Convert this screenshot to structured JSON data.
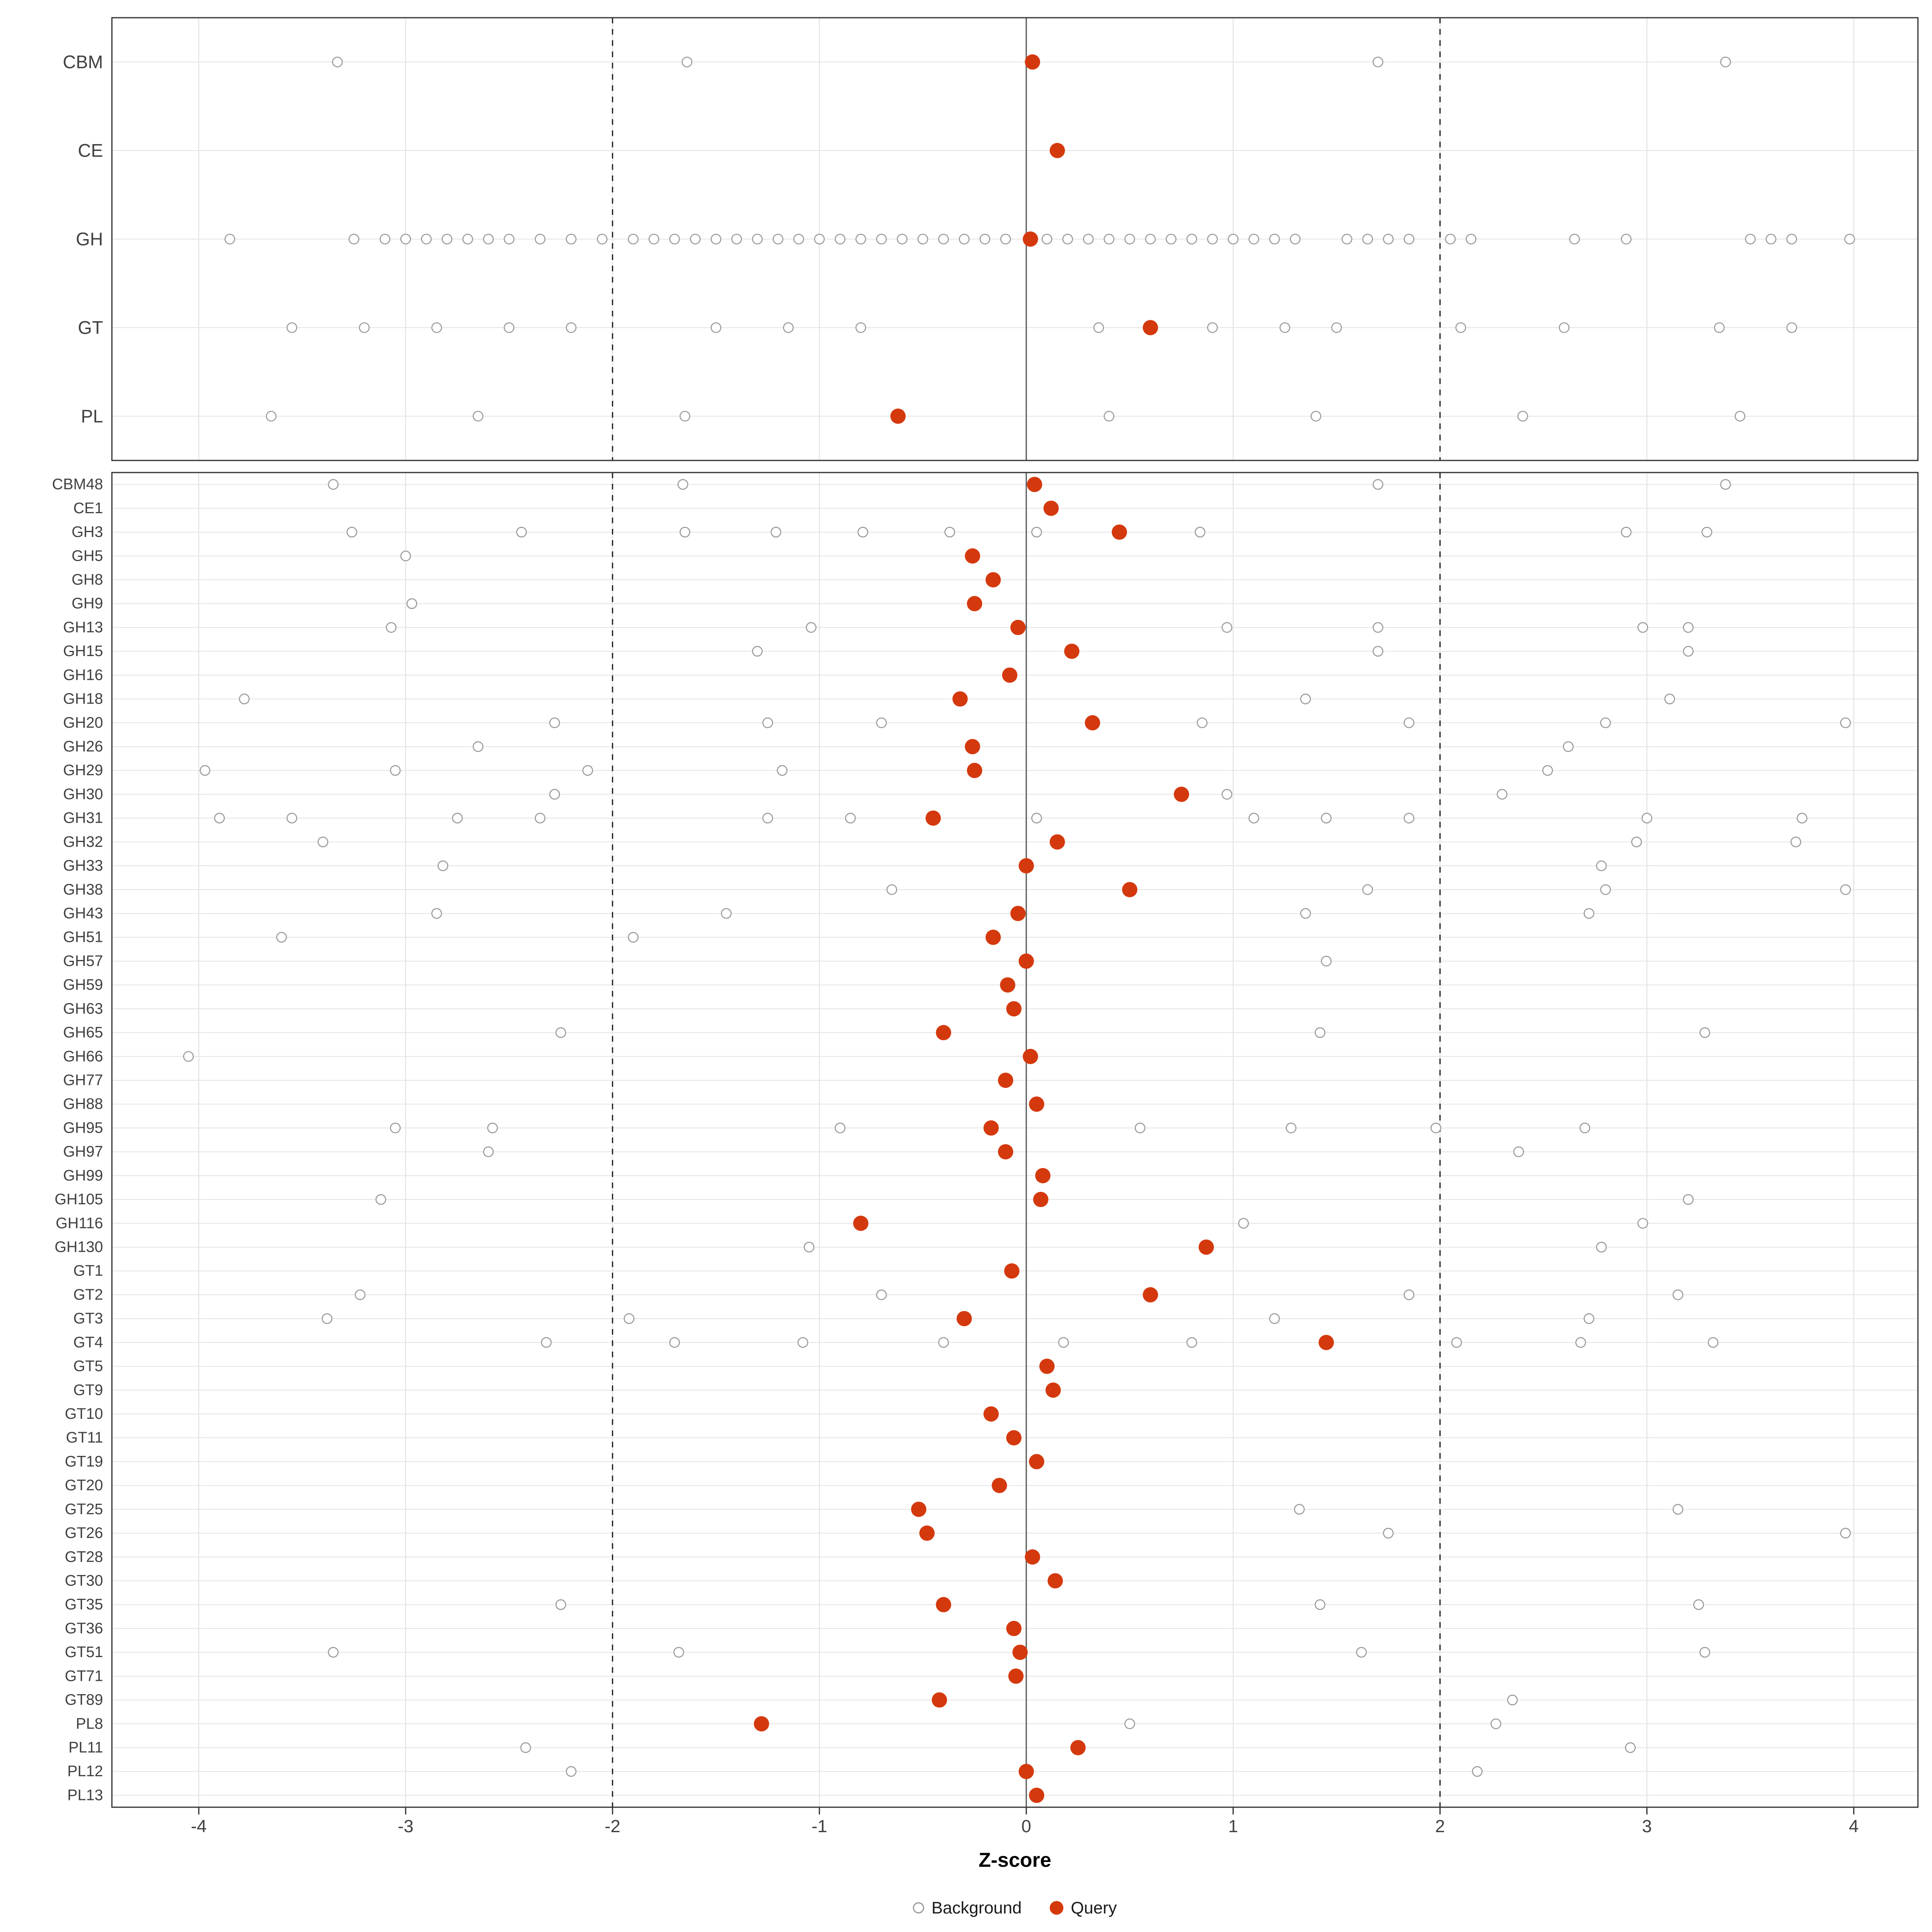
{
  "chart_data": {
    "type": "scatter",
    "title": "",
    "xlabel": "Z-score",
    "x_ticks": [
      -4,
      -3,
      -2,
      -1,
      0,
      1,
      2,
      3,
      4
    ],
    "xlim": [
      -4.42,
      4.31
    ],
    "grid": true,
    "reference_lines": {
      "zero": 0,
      "dashed": [
        -2,
        2
      ]
    },
    "legend": {
      "position": "bottom",
      "items": [
        {
          "label": "Background",
          "marker": "open-circle"
        },
        {
          "label": "Query",
          "marker": "filled-circle"
        }
      ]
    },
    "colors": {
      "query": "#d4390e",
      "background_stroke": "#9a9a9a",
      "grid": "#e4e4e4",
      "dashed_line": "#1a1a1a",
      "zero_line": "#555555",
      "panel_border": "#333333",
      "text": "#404040"
    },
    "panels": [
      {
        "name": "family-summary",
        "rows": [
          {
            "label": "CBM",
            "background": [
              -3.33,
              -1.64,
              1.7,
              3.38
            ],
            "query": 0.03
          },
          {
            "label": "CE",
            "background": [],
            "query": 0.15
          },
          {
            "label": "GH",
            "background": [
              -3.85,
              -3.25,
              -3.1,
              -3.0,
              -2.9,
              -2.8,
              -2.7,
              -2.6,
              -2.5,
              -2.35,
              -2.2,
              -2.05,
              -1.9,
              -1.8,
              -1.7,
              -1.6,
              -1.5,
              -1.4,
              -1.3,
              -1.2,
              -1.1,
              -1.0,
              -0.9,
              -0.8,
              -0.7,
              -0.6,
              -0.5,
              -0.4,
              -0.3,
              -0.2,
              -0.1,
              0.1,
              0.2,
              0.3,
              0.4,
              0.5,
              0.6,
              0.7,
              0.8,
              0.9,
              1.0,
              1.1,
              1.2,
              1.3,
              1.55,
              1.65,
              1.75,
              1.85,
              2.05,
              2.15,
              2.65,
              2.9,
              3.5,
              3.6,
              3.7,
              3.98
            ],
            "query": 0.02
          },
          {
            "label": "GT",
            "background": [
              -3.55,
              -3.2,
              -2.85,
              -2.5,
              -2.2,
              -1.5,
              -1.15,
              -0.8,
              0.35,
              0.9,
              1.25,
              1.5,
              2.1,
              2.6,
              3.35,
              3.7
            ],
            "query": 0.6
          },
          {
            "label": "PL",
            "background": [
              -3.65,
              -2.65,
              -1.65,
              0.4,
              1.4,
              2.4,
              3.45
            ],
            "query": -0.62
          }
        ]
      },
      {
        "name": "subfamily-detail",
        "rows": [
          {
            "label": "CBM48",
            "background": [
              -3.35,
              -1.66,
              1.7,
              3.38
            ],
            "query": 0.04
          },
          {
            "label": "CE1",
            "background": [],
            "query": 0.12
          },
          {
            "label": "GH3",
            "background": [
              -3.26,
              -2.44,
              -1.65,
              -1.21,
              -0.79,
              -0.37,
              0.05,
              0.84,
              2.9,
              3.29
            ],
            "query": 0.45
          },
          {
            "label": "GH5",
            "background": [
              -3.0
            ],
            "query": -0.26
          },
          {
            "label": "GH8",
            "background": [],
            "query": -0.16
          },
          {
            "label": "GH9",
            "background": [
              -2.97
            ],
            "query": -0.25
          },
          {
            "label": "GH13",
            "background": [
              -3.07,
              -1.04,
              0.97,
              1.7,
              2.98,
              3.2
            ],
            "query": -0.04
          },
          {
            "label": "GH15",
            "background": [
              -1.3,
              1.7,
              3.2
            ],
            "query": 0.22
          },
          {
            "label": "GH16",
            "background": [],
            "query": -0.08
          },
          {
            "label": "GH18",
            "background": [
              -3.78,
              1.35,
              3.11
            ],
            "query": -0.32
          },
          {
            "label": "GH20",
            "background": [
              -2.28,
              -1.25,
              -0.7,
              0.85,
              1.85,
              2.8,
              3.96
            ],
            "query": 0.32
          },
          {
            "label": "GH26",
            "background": [
              -2.65,
              2.62
            ],
            "query": -0.26
          },
          {
            "label": "GH29",
            "background": [
              -3.97,
              -3.05,
              -2.12,
              -1.18,
              2.52
            ],
            "query": -0.25
          },
          {
            "label": "GH30",
            "background": [
              -2.28,
              0.97,
              2.3
            ],
            "query": 0.75
          },
          {
            "label": "GH31",
            "background": [
              -3.9,
              -3.55,
              -2.75,
              -2.35,
              -1.25,
              -0.85,
              0.05,
              1.1,
              1.45,
              1.85,
              3.0,
              3.75
            ],
            "query": -0.45
          },
          {
            "label": "GH32",
            "background": [
              -3.4,
              2.95,
              3.72
            ],
            "query": 0.15
          },
          {
            "label": "GH33",
            "background": [
              -2.82,
              2.78
            ],
            "query": 0.0
          },
          {
            "label": "GH38",
            "background": [
              -0.65,
              1.65,
              2.8,
              3.96
            ],
            "query": 0.5
          },
          {
            "label": "GH43",
            "background": [
              -2.85,
              -1.45,
              1.35,
              2.72
            ],
            "query": -0.04
          },
          {
            "label": "GH51",
            "background": [
              -3.6,
              -1.9
            ],
            "query": -0.16
          },
          {
            "label": "GH57",
            "background": [
              1.45
            ],
            "query": 0.0
          },
          {
            "label": "GH59",
            "background": [],
            "query": -0.09
          },
          {
            "label": "GH63",
            "background": [],
            "query": -0.06
          },
          {
            "label": "GH65",
            "background": [
              -2.25,
              1.42,
              3.28
            ],
            "query": -0.4
          },
          {
            "label": "GH66",
            "background": [
              -4.05
            ],
            "query": 0.02
          },
          {
            "label": "GH77",
            "background": [],
            "query": -0.1
          },
          {
            "label": "GH88",
            "background": [],
            "query": 0.05
          },
          {
            "label": "GH95",
            "background": [
              -3.05,
              -2.58,
              -0.9,
              0.55,
              1.28,
              1.98,
              2.7
            ],
            "query": -0.17
          },
          {
            "label": "GH97",
            "background": [
              -2.6,
              2.38
            ],
            "query": -0.1
          },
          {
            "label": "GH99",
            "background": [],
            "query": 0.08
          },
          {
            "label": "GH105",
            "background": [
              -3.12,
              3.2
            ],
            "query": 0.07
          },
          {
            "label": "GH116",
            "background": [
              1.05,
              2.98
            ],
            "query": -0.8
          },
          {
            "label": "GH130",
            "background": [
              -1.05,
              2.78
            ],
            "query": 0.87
          },
          {
            "label": "GT1",
            "background": [],
            "query": -0.07
          },
          {
            "label": "GT2",
            "background": [
              -3.22,
              -0.7,
              1.85,
              3.15
            ],
            "query": 0.6
          },
          {
            "label": "GT3",
            "background": [
              -3.38,
              -1.92,
              1.2,
              2.72
            ],
            "query": -0.3
          },
          {
            "label": "GT4",
            "background": [
              -2.32,
              -1.7,
              -1.08,
              -0.4,
              0.18,
              0.8,
              2.08,
              2.68,
              3.32
            ],
            "query": 1.45
          },
          {
            "label": "GT5",
            "background": [],
            "query": 0.1
          },
          {
            "label": "GT9",
            "background": [],
            "query": 0.13
          },
          {
            "label": "GT10",
            "background": [],
            "query": -0.17
          },
          {
            "label": "GT11",
            "background": [],
            "query": -0.06
          },
          {
            "label": "GT19",
            "background": [],
            "query": 0.05
          },
          {
            "label": "GT20",
            "background": [],
            "query": -0.13
          },
          {
            "label": "GT25",
            "background": [
              1.32,
              3.15
            ],
            "query": -0.52
          },
          {
            "label": "GT26",
            "background": [
              1.75,
              3.96
            ],
            "query": -0.48
          },
          {
            "label": "GT28",
            "background": [],
            "query": 0.03
          },
          {
            "label": "GT30",
            "background": [],
            "query": 0.14
          },
          {
            "label": "GT35",
            "background": [
              -2.25,
              1.42,
              3.25
            ],
            "query": -0.4
          },
          {
            "label": "GT36",
            "background": [],
            "query": -0.06
          },
          {
            "label": "GT51",
            "background": [
              -3.35,
              -1.68,
              1.62,
              3.28
            ],
            "query": -0.03
          },
          {
            "label": "GT71",
            "background": [],
            "query": -0.05
          },
          {
            "label": "GT89",
            "background": [
              2.35
            ],
            "query": -0.42
          },
          {
            "label": "PL8",
            "background": [
              0.5,
              2.27
            ],
            "query": -1.28
          },
          {
            "label": "PL11",
            "background": [
              -2.42,
              2.92
            ],
            "query": 0.25
          },
          {
            "label": "PL12",
            "background": [
              -2.2,
              2.18
            ],
            "query": 0.0
          },
          {
            "label": "PL13",
            "background": [],
            "query": 0.05
          }
        ]
      }
    ]
  }
}
